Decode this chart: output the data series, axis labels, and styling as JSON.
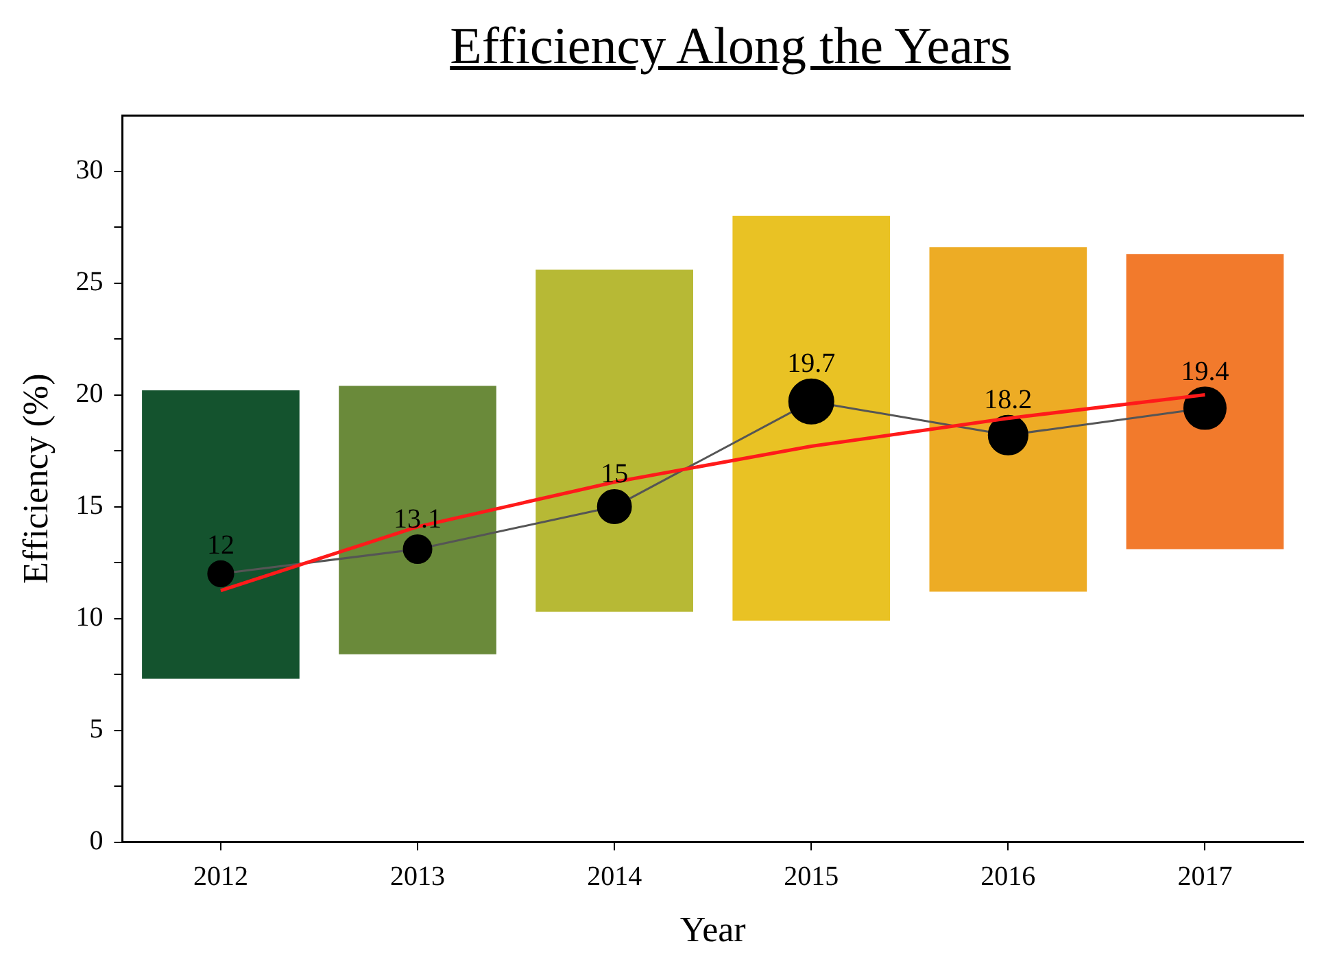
{
  "chart_data": {
    "type": "bar",
    "title": "Efficiency Along the Years",
    "xlabel": "Year",
    "ylabel": "Efficiency (%)",
    "categories": [
      "2012",
      "2013",
      "2014",
      "2015",
      "2016",
      "2017"
    ],
    "ylim": [
      0,
      32.5
    ],
    "yticks": [
      0,
      {
        "value": 2.5,
        "label": null
      },
      5,
      {
        "value": 7.5,
        "label": null
      },
      10,
      {
        "value": 12.5,
        "label": null
      },
      15,
      {
        "value": 17.5,
        "label": null
      },
      20,
      {
        "value": 22.5,
        "label": null
      },
      25,
      {
        "value": 27.5,
        "label": null
      },
      30
    ],
    "grid": false,
    "legend": false,
    "series": [
      {
        "base": [
          7.3,
          8.4,
          10.3,
          9.9,
          11.2,
          13.1
        ],
        "values": [
          12.9,
          12.0,
          15.3,
          18.1,
          15.4,
          13.2
        ],
        "colors": [
          "#14532e",
          "#6a8a3a",
          "#b7b935",
          "#e9c224",
          "#edac25",
          "#f27a2c"
        ]
      },
      {
        "type": "line",
        "color": "#ff1a1a",
        "values": [
          11.25,
          14.1,
          16.1,
          17.7,
          18.95,
          20.0
        ],
        "marker": "none",
        "line_style": "solid"
      },
      {
        "type": "bubble",
        "color": "#000000",
        "values": [
          12,
          13.1,
          15,
          19.7,
          18.2,
          19.4
        ],
        "sizes": [
          0.32,
          0.39,
          0.56,
          1,
          0.77,
          0.88
        ],
        "value_labels": [
          "12",
          "13.1",
          "15",
          "19.7",
          "18.2",
          "19.4"
        ],
        "line_style": "solid"
      }
    ]
  }
}
